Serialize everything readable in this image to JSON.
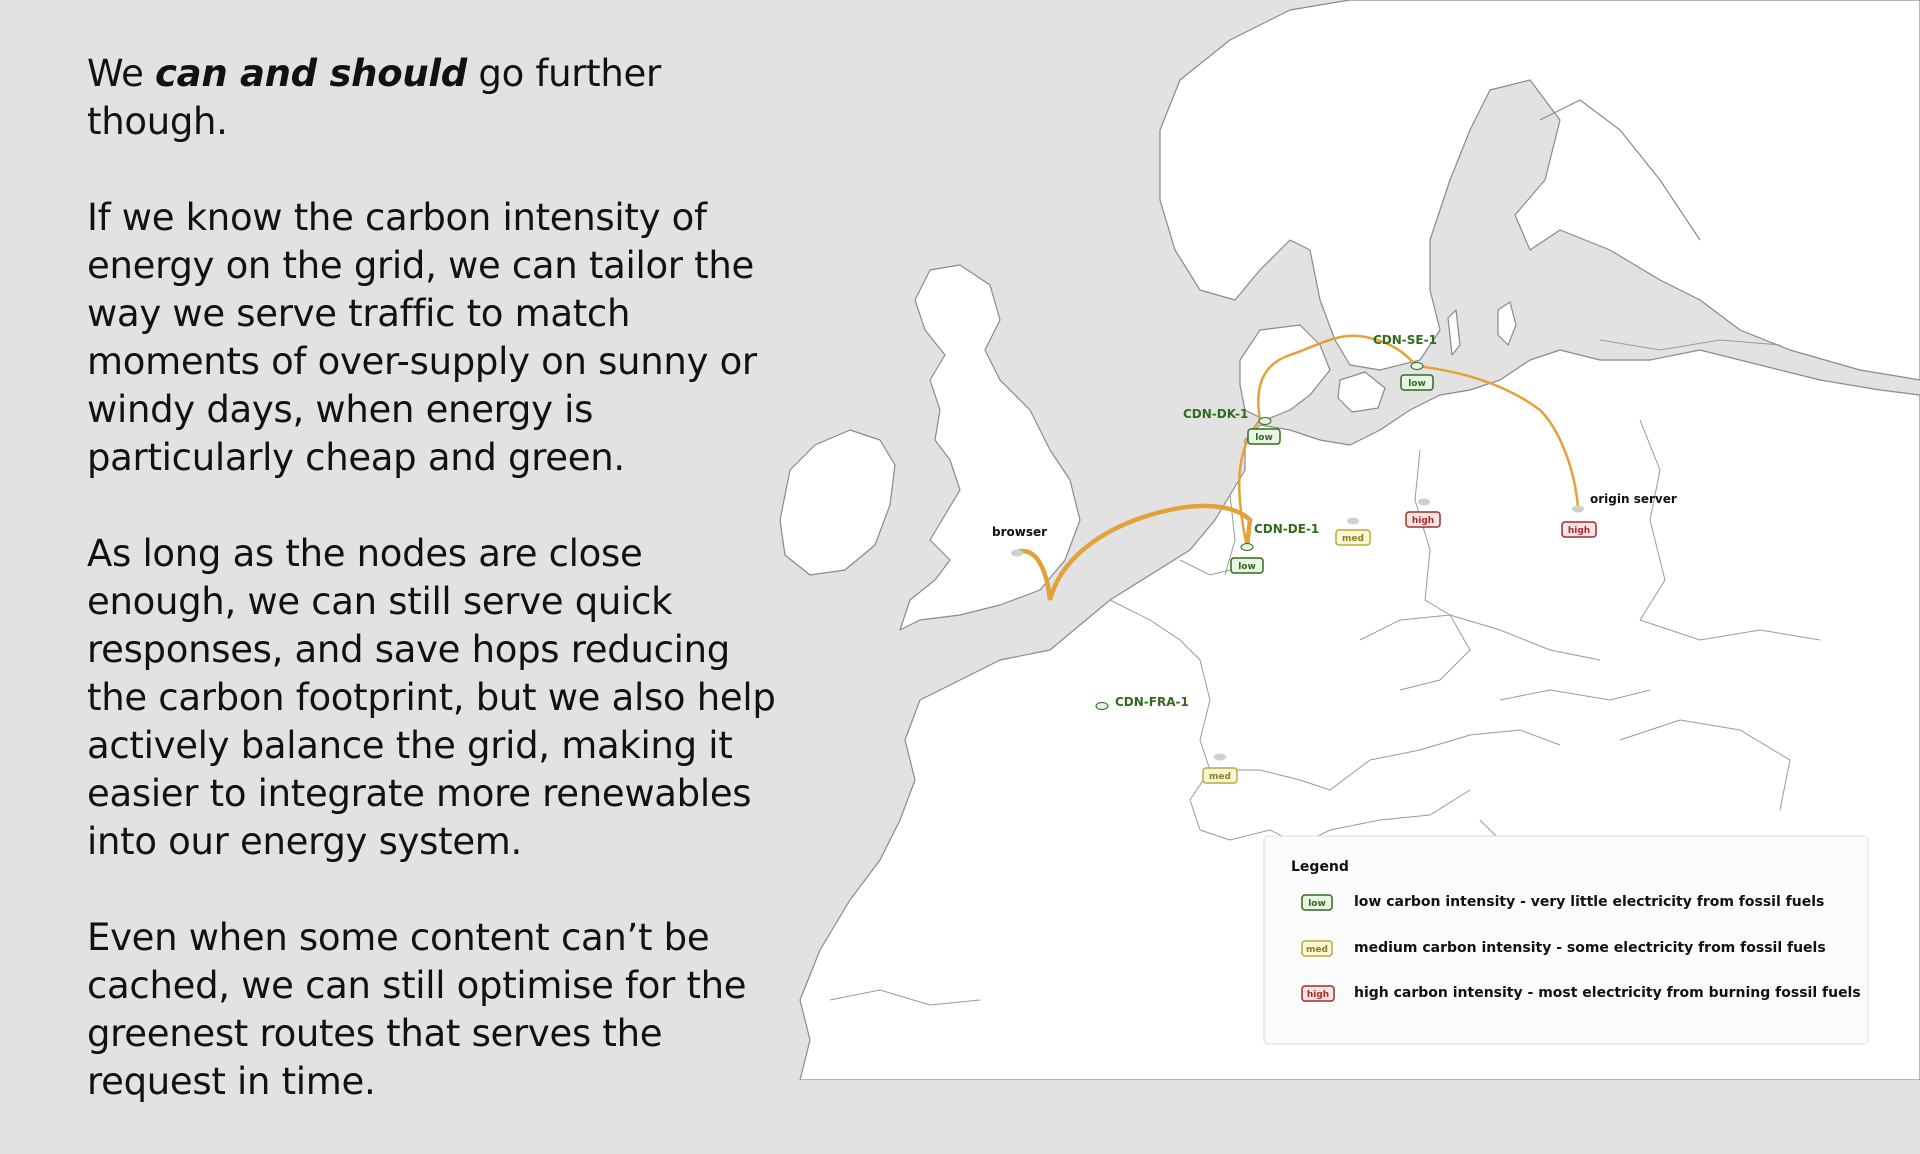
{
  "text": {
    "para1_pre": "We ",
    "para1_emph": "can and should",
    "para1_post": " go further though.",
    "para2": "If we know the carbon intensity of energy on the grid, we can tailor the way we serve traffic to match moments of over-supply on sunny or windy days, when energy is particularly cheap and green.",
    "para3": "As long as the nodes are close enough, we can still serve quick responses, and save hops reducing the carbon footprint, but we also help actively balance the grid, making it easier to integrate more renewables into our energy system.",
    "para4": "Even when some content can’t be cached, we can still optimise for the greenest routes that serves the request in time."
  },
  "map": {
    "nodes": [
      {
        "id": "browser",
        "label": "browser",
        "tag": ""
      },
      {
        "id": "cdn-de-1",
        "label": "CDN-DE-1",
        "tag": "low"
      },
      {
        "id": "cdn-dk-1",
        "label": "CDN-DK-1",
        "tag": "low"
      },
      {
        "id": "cdn-se-1",
        "label": "CDN-SE-1",
        "tag": "low"
      },
      {
        "id": "cdn-fra-1",
        "label": "CDN-FRA-1",
        "tag": ""
      },
      {
        "id": "origin-server",
        "label": "origin server",
        "tag": "high"
      },
      {
        "id": "node-germany-central",
        "label": "",
        "tag": "med"
      },
      {
        "id": "node-germany-east",
        "label": "",
        "tag": "high"
      },
      {
        "id": "node-switzerland",
        "label": "",
        "tag": "med"
      }
    ],
    "routes": [
      "browser → CDN-DE-1",
      "CDN-DE-1 → CDN-DK-1 → CDN-SE-1 → origin server"
    ],
    "colors": {
      "land": "#ffffff",
      "sea": "#e2e2e2",
      "border": "#8a8a8a",
      "route": "#e3a13a",
      "low": "#2f6a1d",
      "low_fill": "#eaf6e4",
      "med": "#b8ab3a",
      "med_fill": "#fbf6d8",
      "high": "#a32b2b",
      "high_fill": "#fbe4e4"
    }
  },
  "legend": {
    "title": "Legend",
    "items": [
      {
        "tag": "low",
        "description": "low carbon intensity - very little electricity from fossil fuels"
      },
      {
        "tag": "med",
        "description": "medium carbon intensity - some electricity from fossil fuels"
      },
      {
        "tag": "high",
        "description": "high carbon intensity - most electricity from burning fossil fuels"
      }
    ]
  }
}
